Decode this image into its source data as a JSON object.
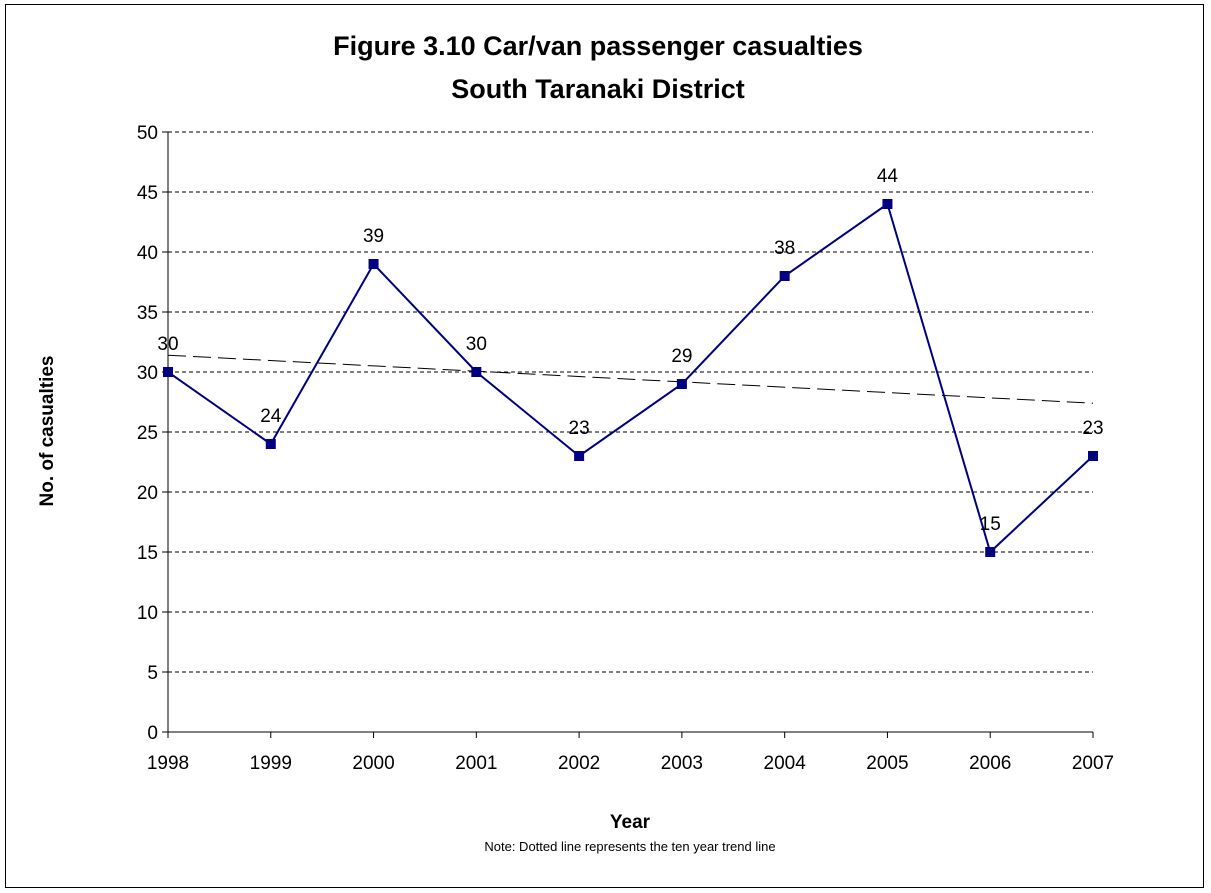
{
  "chart_data": {
    "type": "line",
    "title": "Figure 3.10 Car/van passenger casualties",
    "subtitle": "South Taranaki District",
    "xlabel": "Year",
    "ylabel": "No. of casualties",
    "note": "Note: Dotted line represents the ten year trend line",
    "categories": [
      "1998",
      "1999",
      "2000",
      "2001",
      "2002",
      "2003",
      "2004",
      "2005",
      "2006",
      "2007"
    ],
    "values": [
      30,
      24,
      39,
      30,
      23,
      29,
      38,
      44,
      15,
      23
    ],
    "ylim": [
      0,
      50
    ],
    "yticks": [
      0,
      5,
      10,
      15,
      20,
      25,
      30,
      35,
      40,
      45,
      50
    ],
    "grid": true,
    "legend": "none",
    "trendline": {
      "start": 31.4,
      "end": 27.4,
      "style": "dashed"
    },
    "colors": {
      "series": "#000080",
      "marker": "#000080",
      "grid": "#000000",
      "trend": "#000000"
    }
  }
}
